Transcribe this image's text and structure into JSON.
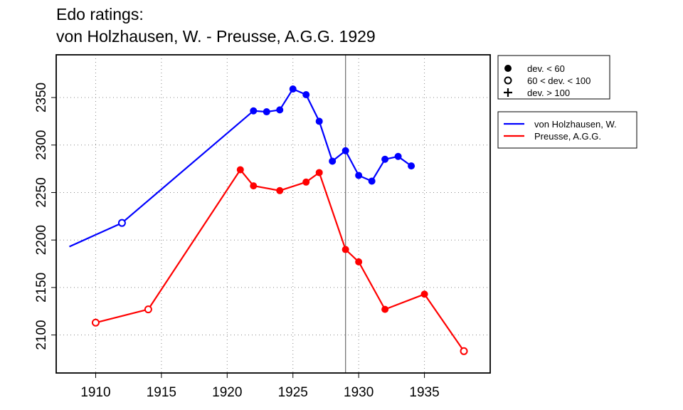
{
  "chart_data": {
    "type": "line",
    "title_lines": [
      "Edo ratings:",
      "von Holzhausen, W. - Preusse, A.G.G. 1929"
    ],
    "xlabel": "",
    "ylabel": "",
    "xlim": [
      1907,
      1940
    ],
    "ylim": [
      2060,
      2395
    ],
    "x_ticks": [
      1910,
      1915,
      1920,
      1925,
      1930,
      1935
    ],
    "y_ticks": [
      2100,
      2150,
      2200,
      2250,
      2300,
      2350
    ],
    "grid": true,
    "vertical_marker_x": 1929,
    "marker_legend": {
      "placement": "top-right outside",
      "entries": [
        {
          "symbol": "filled-circle",
          "label": "dev. < 60"
        },
        {
          "symbol": "open-circle",
          "label": "60 < dev. < 100"
        },
        {
          "symbol": "plus",
          "label": "dev. > 100"
        }
      ]
    },
    "series": [
      {
        "name": "von Holzhausen, W.",
        "color": "#0000ff",
        "points": [
          {
            "x": 1908,
            "y": 2193,
            "marker": "none"
          },
          {
            "x": 1912,
            "y": 2218,
            "marker": "open-circle"
          },
          {
            "x": 1922,
            "y": 2336,
            "marker": "filled-circle"
          },
          {
            "x": 1923,
            "y": 2335,
            "marker": "filled-circle"
          },
          {
            "x": 1924,
            "y": 2337,
            "marker": "filled-circle"
          },
          {
            "x": 1925,
            "y": 2359,
            "marker": "filled-circle"
          },
          {
            "x": 1926,
            "y": 2353,
            "marker": "filled-circle"
          },
          {
            "x": 1927,
            "y": 2325,
            "marker": "filled-circle"
          },
          {
            "x": 1928,
            "y": 2283,
            "marker": "filled-circle"
          },
          {
            "x": 1929,
            "y": 2294,
            "marker": "filled-circle"
          },
          {
            "x": 1930,
            "y": 2268,
            "marker": "filled-circle"
          },
          {
            "x": 1931,
            "y": 2262,
            "marker": "filled-circle"
          },
          {
            "x": 1932,
            "y": 2285,
            "marker": "filled-circle"
          },
          {
            "x": 1933,
            "y": 2288,
            "marker": "filled-circle"
          },
          {
            "x": 1934,
            "y": 2278,
            "marker": "filled-circle"
          }
        ]
      },
      {
        "name": "Preusse, A.G.G.",
        "color": "#ff0000",
        "points": [
          {
            "x": 1910,
            "y": 2113,
            "marker": "open-circle"
          },
          {
            "x": 1914,
            "y": 2127,
            "marker": "open-circle"
          },
          {
            "x": 1921,
            "y": 2274,
            "marker": "filled-circle"
          },
          {
            "x": 1922,
            "y": 2257,
            "marker": "filled-circle"
          },
          {
            "x": 1924,
            "y": 2252,
            "marker": "filled-circle"
          },
          {
            "x": 1926,
            "y": 2261,
            "marker": "filled-circle"
          },
          {
            "x": 1927,
            "y": 2271,
            "marker": "filled-circle"
          },
          {
            "x": 1929,
            "y": 2190,
            "marker": "filled-circle"
          },
          {
            "x": 1930,
            "y": 2177,
            "marker": "filled-circle"
          },
          {
            "x": 1932,
            "y": 2127,
            "marker": "filled-circle"
          },
          {
            "x": 1935,
            "y": 2143,
            "marker": "filled-circle"
          },
          {
            "x": 1938,
            "y": 2083,
            "marker": "open-circle"
          }
        ]
      }
    ]
  }
}
